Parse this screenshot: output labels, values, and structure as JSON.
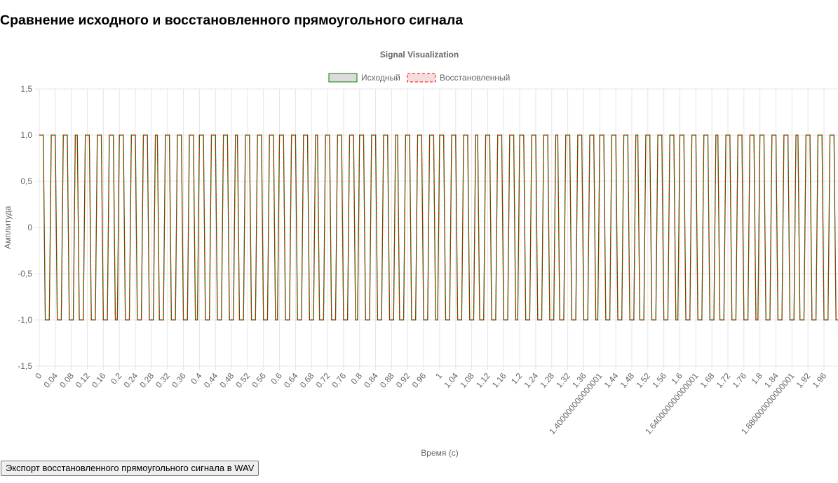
{
  "page": {
    "title": "Сравнение исходного и восстановленного прямоугольного сигнала",
    "export_button_label": "Экспорт восстановленного прямоугольного сигнала в WAV"
  },
  "colors": {
    "original": "#008000",
    "original_fill": "#dcdcdc",
    "reconstructed": "#ff0000",
    "reconstructed_fill": "#f5dddd",
    "grid": "#e5e5e5",
    "text": "#666666"
  },
  "chart_data": {
    "type": "line",
    "title": "Signal Visualization",
    "xlabel": "Время (с)",
    "ylabel": "Амплитуда",
    "legend_position": "top",
    "grid": true,
    "ylim": [
      -1.5,
      1.5
    ],
    "y_ticks": [
      "1,5",
      "1,0",
      "0,5",
      "0",
      "-0,5",
      "-1,0",
      "-1,5"
    ],
    "x_start": 0,
    "x_step": 0.005,
    "x_end": 1.995,
    "x_tick_labels": [
      "0",
      "0.04",
      "0.08",
      "0.12",
      "0.16",
      "0.2",
      "0.24",
      "0.28",
      "0.32",
      "0.36",
      "0.4",
      "0.44",
      "0.48",
      "0.52",
      "0.56",
      "0.6",
      "0.64",
      "0.68",
      "0.72",
      "0.76",
      "0.8",
      "0.84",
      "0.88",
      "0.92",
      "0.96",
      "1",
      "1.04",
      "1.08",
      "1.12",
      "1.16",
      "1.2",
      "1.24",
      "1.28",
      "1.32",
      "1.36",
      "1.400000000000001",
      "1.44",
      "1.48",
      "1.52",
      "1.56",
      "1.6",
      "1.640000000000001",
      "1.68",
      "1.72",
      "1.76",
      "1.8",
      "1.84",
      "1.880000000000001",
      "1.92",
      "1.96"
    ],
    "series": [
      {
        "name": "Исходный",
        "waveform": "square",
        "frequency_hz": 35,
        "high": 1,
        "low": -1,
        "start": "high",
        "style": "solid"
      },
      {
        "name": "Восстановленный",
        "waveform": "square",
        "frequency_hz": 35,
        "high": 1,
        "low": -1,
        "start": "high",
        "style": "dashed"
      }
    ]
  }
}
